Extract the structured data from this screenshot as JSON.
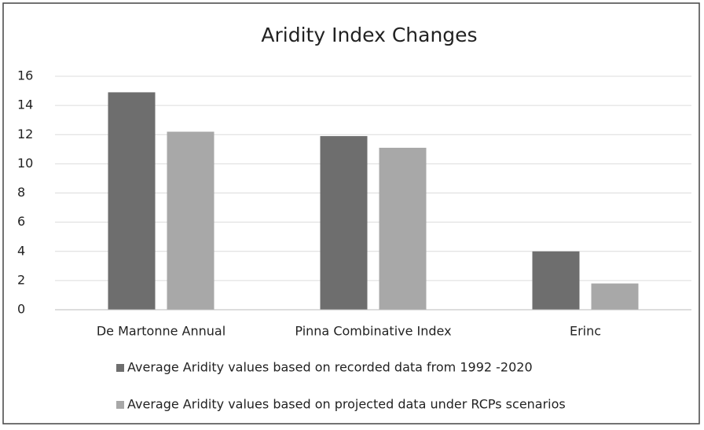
{
  "chart_data": {
    "type": "bar",
    "title": "Aridity Index  Changes",
    "categories": [
      "De Martonne Annual",
      "Pinna Combinative Index",
      "Erinc"
    ],
    "series": [
      {
        "name": "Average Aridity values based on recorded data from 1992 -2020",
        "color": "#6e6e6e",
        "values": [
          14.9,
          11.9,
          4.0
        ]
      },
      {
        "name": "Average Aridity values based on projected data under RCPs scenarios",
        "color": "#a8a8a8",
        "values": [
          12.2,
          11.1,
          1.8
        ]
      }
    ],
    "ylim": [
      0,
      16
    ],
    "yticks": [
      0,
      2,
      4,
      6,
      8,
      10,
      12,
      14,
      16
    ],
    "grid": true,
    "legend": "bottom"
  }
}
